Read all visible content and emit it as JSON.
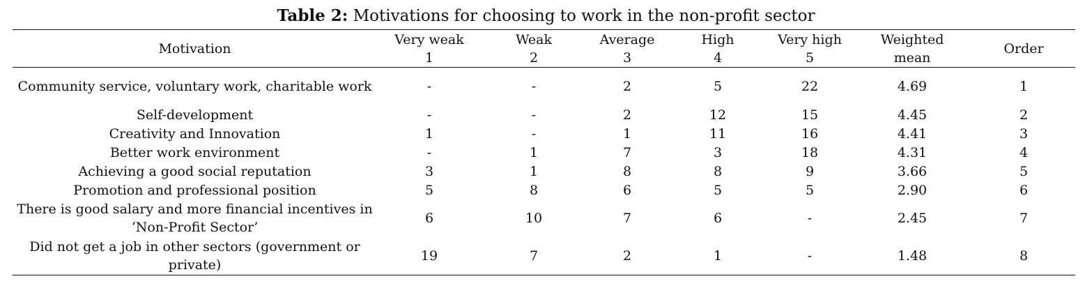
{
  "caption": {
    "label": "Table 2:",
    "text": "Motivations for choosing to work in the non-profit sector"
  },
  "table": {
    "columns": [
      {
        "line1": "Motivation",
        "line2": ""
      },
      {
        "line1": "Very weak",
        "line2": "1"
      },
      {
        "line1": "Weak",
        "line2": "2"
      },
      {
        "line1": "Average",
        "line2": "3"
      },
      {
        "line1": "High",
        "line2": "4"
      },
      {
        "line1": "Very high",
        "line2": "5"
      },
      {
        "line1": "Weighted",
        "line2": "mean"
      },
      {
        "line1": "Order",
        "line2": ""
      }
    ],
    "rows": [
      {
        "motivation": "Community service, voluntary work, charitable work",
        "very_weak": "-",
        "weak": "-",
        "average": "2",
        "high": "5",
        "very_high": "22",
        "weighted_mean": "4.69",
        "order": "1"
      },
      {
        "motivation": "Self-development",
        "very_weak": "-",
        "weak": "-",
        "average": "2",
        "high": "12",
        "very_high": "15",
        "weighted_mean": "4.45",
        "order": "2"
      },
      {
        "motivation": "Creativity and Innovation",
        "very_weak": "1",
        "weak": "-",
        "average": "1",
        "high": "11",
        "very_high": "16",
        "weighted_mean": "4.41",
        "order": "3"
      },
      {
        "motivation": "Better work environment",
        "very_weak": "-",
        "weak": "1",
        "average": "7",
        "high": "3",
        "very_high": "18",
        "weighted_mean": "4.31",
        "order": "4"
      },
      {
        "motivation": "Achieving a good social reputation",
        "very_weak": "3",
        "weak": "1",
        "average": "8",
        "high": "8",
        "very_high": "9",
        "weighted_mean": "3.66",
        "order": "5"
      },
      {
        "motivation": "Promotion and professional position",
        "very_weak": "5",
        "weak": "8",
        "average": "6",
        "high": "5",
        "very_high": "5",
        "weighted_mean": "2.90",
        "order": "6"
      },
      {
        "motivation": "There is good salary and more financial incentives in ‘Non-Profit Sector’",
        "very_weak": "6",
        "weak": "10",
        "average": "7",
        "high": "6",
        "very_high": "-",
        "weighted_mean": "2.45",
        "order": "7"
      },
      {
        "motivation": "Did not get a job in other sectors (government or private)",
        "very_weak": "19",
        "weak": "7",
        "average": "2",
        "high": "1",
        "very_high": "-",
        "weighted_mean": "1.48",
        "order": "8"
      }
    ]
  }
}
